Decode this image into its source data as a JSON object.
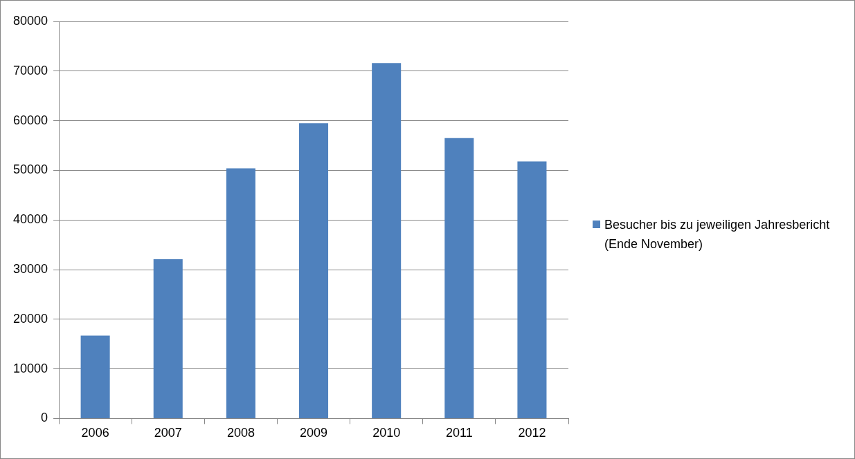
{
  "chart_data": {
    "type": "bar",
    "categories": [
      "2006",
      "2007",
      "2008",
      "2009",
      "2010",
      "2011",
      "2012"
    ],
    "series": [
      {
        "name": "Besucher bis zu jeweiligen Jahresbericht (Ende November)",
        "color": "#4f81bd",
        "values": [
          16700,
          32100,
          50400,
          59500,
          71600,
          56500,
          51800
        ]
      }
    ],
    "ylim": [
      0,
      80000
    ],
    "yticks": [
      0,
      10000,
      20000,
      30000,
      40000,
      50000,
      60000,
      70000,
      80000
    ],
    "grid": "y",
    "legend": "right"
  }
}
